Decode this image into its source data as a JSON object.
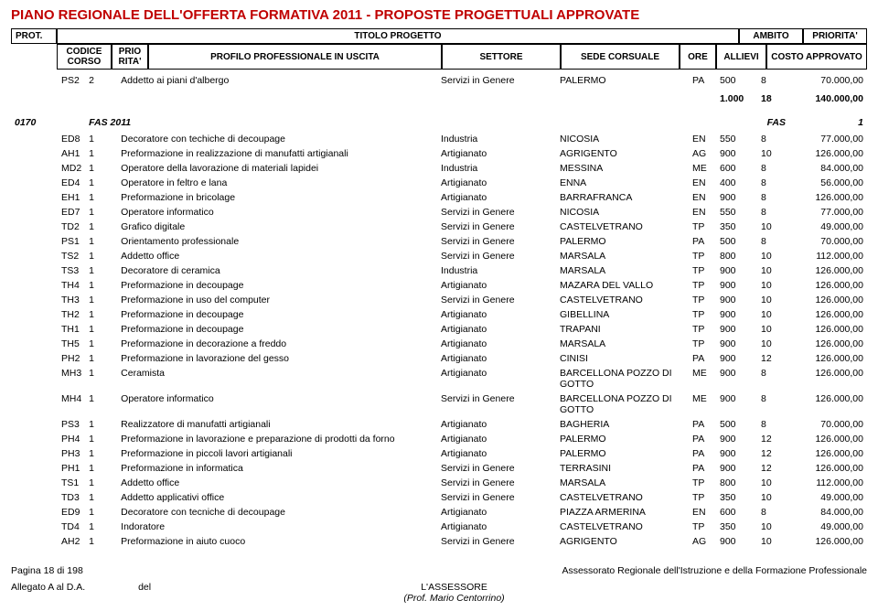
{
  "title_main": "PIANO REGIONALE DELL'OFFERTA FORMATIVA 2011 - PROPOSTE PROGETTUALI APPROVATE",
  "header": {
    "prot": "PROT.",
    "titolo": "TITOLO PROGETTO",
    "ambito": "AMBITO",
    "priorita": "PRIORITA'",
    "codice": "CODICE CORSO",
    "prio_rita": "PRIO RITA'",
    "profilo": "PROFILO PROFESSIONALE IN USCITA",
    "settore": "SETTORE",
    "sede": "SEDE CORSUALE",
    "ore": "ORE",
    "allievi": "ALLIEVI",
    "costo": "COSTO APPROVATO"
  },
  "top_row": {
    "codice": "PS2",
    "prio": "2",
    "profilo": "Addetto ai piani d'albergo",
    "settore": "Servizi in Genere",
    "sede": "PALERMO",
    "prov": "PA",
    "ore": "500",
    "allievi": "8",
    "costo": "70.000,00"
  },
  "summary": {
    "ore": "1.000",
    "allievi": "18",
    "costo": "140.000,00"
  },
  "section": {
    "prot": "0170",
    "titolo": "FAS 2011",
    "ambito": "FAS",
    "prio": "1"
  },
  "rows": [
    {
      "codice": "ED8",
      "prio": "1",
      "profilo": "Decoratore con techiche di decoupage",
      "settore": "Industria",
      "sede": "NICOSIA",
      "prov": "EN",
      "ore": "550",
      "allievi": "8",
      "costo": "77.000,00"
    },
    {
      "codice": "AH1",
      "prio": "1",
      "profilo": "Preformazione in realizzazione di manufatti artigianali",
      "settore": "Artigianato",
      "sede": "AGRIGENTO",
      "prov": "AG",
      "ore": "900",
      "allievi": "10",
      "costo": "126.000,00"
    },
    {
      "codice": "MD2",
      "prio": "1",
      "profilo": "Operatore della lavorazione di materiali lapidei",
      "settore": "Industria",
      "sede": "MESSINA",
      "prov": "ME",
      "ore": "600",
      "allievi": "8",
      "costo": "84.000,00"
    },
    {
      "codice": "ED4",
      "prio": "1",
      "profilo": "Operatore in feltro e lana",
      "settore": "Artigianato",
      "sede": "ENNA",
      "prov": "EN",
      "ore": "400",
      "allievi": "8",
      "costo": "56.000,00"
    },
    {
      "codice": "EH1",
      "prio": "1",
      "profilo": "Preformazione in bricolage",
      "settore": "Artigianato",
      "sede": "BARRAFRANCA",
      "prov": "EN",
      "ore": "900",
      "allievi": "8",
      "costo": "126.000,00"
    },
    {
      "codice": "ED7",
      "prio": "1",
      "profilo": "Operatore informatico",
      "settore": "Servizi in Genere",
      "sede": "NICOSIA",
      "prov": "EN",
      "ore": "550",
      "allievi": "8",
      "costo": "77.000,00"
    },
    {
      "codice": "TD2",
      "prio": "1",
      "profilo": "Grafico digitale",
      "settore": "Servizi in Genere",
      "sede": "CASTELVETRANO",
      "prov": "TP",
      "ore": "350",
      "allievi": "10",
      "costo": "49.000,00"
    },
    {
      "codice": "PS1",
      "prio": "1",
      "profilo": "Orientamento professionale",
      "settore": "Servizi in Genere",
      "sede": "PALERMO",
      "prov": "PA",
      "ore": "500",
      "allievi": "8",
      "costo": "70.000,00"
    },
    {
      "codice": "TS2",
      "prio": "1",
      "profilo": "Addetto office",
      "settore": "Servizi in Genere",
      "sede": "MARSALA",
      "prov": "TP",
      "ore": "800",
      "allievi": "10",
      "costo": "112.000,00"
    },
    {
      "codice": "TS3",
      "prio": "1",
      "profilo": "Decoratore di ceramica",
      "settore": "Industria",
      "sede": "MARSALA",
      "prov": "TP",
      "ore": "900",
      "allievi": "10",
      "costo": "126.000,00"
    },
    {
      "codice": "TH4",
      "prio": "1",
      "profilo": "Preformazione in decoupage",
      "settore": "Artigianato",
      "sede": "MAZARA DEL VALLO",
      "prov": "TP",
      "ore": "900",
      "allievi": "10",
      "costo": "126.000,00"
    },
    {
      "codice": "TH3",
      "prio": "1",
      "profilo": "Preformazione in uso del computer",
      "settore": "Servizi in Genere",
      "sede": "CASTELVETRANO",
      "prov": "TP",
      "ore": "900",
      "allievi": "10",
      "costo": "126.000,00"
    },
    {
      "codice": "TH2",
      "prio": "1",
      "profilo": "Preformazione in decoupage",
      "settore": "Artigianato",
      "sede": "GIBELLINA",
      "prov": "TP",
      "ore": "900",
      "allievi": "10",
      "costo": "126.000,00"
    },
    {
      "codice": "TH1",
      "prio": "1",
      "profilo": "Preformazione in decoupage",
      "settore": "Artigianato",
      "sede": "TRAPANI",
      "prov": "TP",
      "ore": "900",
      "allievi": "10",
      "costo": "126.000,00"
    },
    {
      "codice": "TH5",
      "prio": "1",
      "profilo": "Preformazione in decorazione a freddo",
      "settore": "Artigianato",
      "sede": "MARSALA",
      "prov": "TP",
      "ore": "900",
      "allievi": "10",
      "costo": "126.000,00"
    },
    {
      "codice": "PH2",
      "prio": "1",
      "profilo": "Preformazione in lavorazione del gesso",
      "settore": "Artigianato",
      "sede": "CINISI",
      "prov": "PA",
      "ore": "900",
      "allievi": "12",
      "costo": "126.000,00"
    },
    {
      "codice": "MH3",
      "prio": "1",
      "profilo": "Ceramista",
      "settore": "Artigianato",
      "sede": "BARCELLONA POZZO DI GOTTO",
      "prov": "ME",
      "ore": "900",
      "allievi": "8",
      "costo": "126.000,00"
    },
    {
      "codice": "MH4",
      "prio": "1",
      "profilo": "Operatore informatico",
      "settore": "Servizi in Genere",
      "sede": "BARCELLONA POZZO DI GOTTO",
      "prov": "ME",
      "ore": "900",
      "allievi": "8",
      "costo": "126.000,00"
    },
    {
      "codice": "PS3",
      "prio": "1",
      "profilo": "Realizzatore di manufatti artigianali",
      "settore": "Artigianato",
      "sede": "BAGHERIA",
      "prov": "PA",
      "ore": "500",
      "allievi": "8",
      "costo": "70.000,00"
    },
    {
      "codice": "PH4",
      "prio": "1",
      "profilo": "Preformazione in lavorazione e preparazione di prodotti da forno",
      "settore": "Artigianato",
      "sede": "PALERMO",
      "prov": "PA",
      "ore": "900",
      "allievi": "12",
      "costo": "126.000,00"
    },
    {
      "codice": "PH3",
      "prio": "1",
      "profilo": "Preformazione in piccoli lavori artigianali",
      "settore": "Artigianato",
      "sede": "PALERMO",
      "prov": "PA",
      "ore": "900",
      "allievi": "12",
      "costo": "126.000,00"
    },
    {
      "codice": "PH1",
      "prio": "1",
      "profilo": "Preformazione in informatica",
      "settore": "Servizi in Genere",
      "sede": "TERRASINI",
      "prov": "PA",
      "ore": "900",
      "allievi": "12",
      "costo": "126.000,00"
    },
    {
      "codice": "TS1",
      "prio": "1",
      "profilo": "Addetto office",
      "settore": "Servizi in Genere",
      "sede": "MARSALA",
      "prov": "TP",
      "ore": "800",
      "allievi": "10",
      "costo": "112.000,00"
    },
    {
      "codice": "TD3",
      "prio": "1",
      "profilo": "Addetto applicativi office",
      "settore": "Servizi in Genere",
      "sede": "CASTELVETRANO",
      "prov": "TP",
      "ore": "350",
      "allievi": "10",
      "costo": "49.000,00"
    },
    {
      "codice": "ED9",
      "prio": "1",
      "profilo": "Decoratore con tecniche di decoupage",
      "settore": "Artigianato",
      "sede": "PIAZZA ARMERINA",
      "prov": "EN",
      "ore": "600",
      "allievi": "8",
      "costo": "84.000,00"
    },
    {
      "codice": "TD4",
      "prio": "1",
      "profilo": "Indoratore",
      "settore": "Artigianato",
      "sede": "CASTELVETRANO",
      "prov": "TP",
      "ore": "350",
      "allievi": "10",
      "costo": "49.000,00"
    },
    {
      "codice": "AH2",
      "prio": "1",
      "profilo": "Preformazione in aiuto cuoco",
      "settore": "Servizi in Genere",
      "sede": "AGRIGENTO",
      "prov": "AG",
      "ore": "900",
      "allievi": "10",
      "costo": "126.000,00"
    }
  ],
  "footer": {
    "page": "Pagina 18 di 198",
    "assessorato": "Assessorato Regionale dell'Istruzione e della Formazione Professionale",
    "allegato": "Allegato A al D.A.",
    "del": "del",
    "lassessore": "L'ASSESSORE",
    "prof": "(Prof. Mario Centorrino)"
  }
}
